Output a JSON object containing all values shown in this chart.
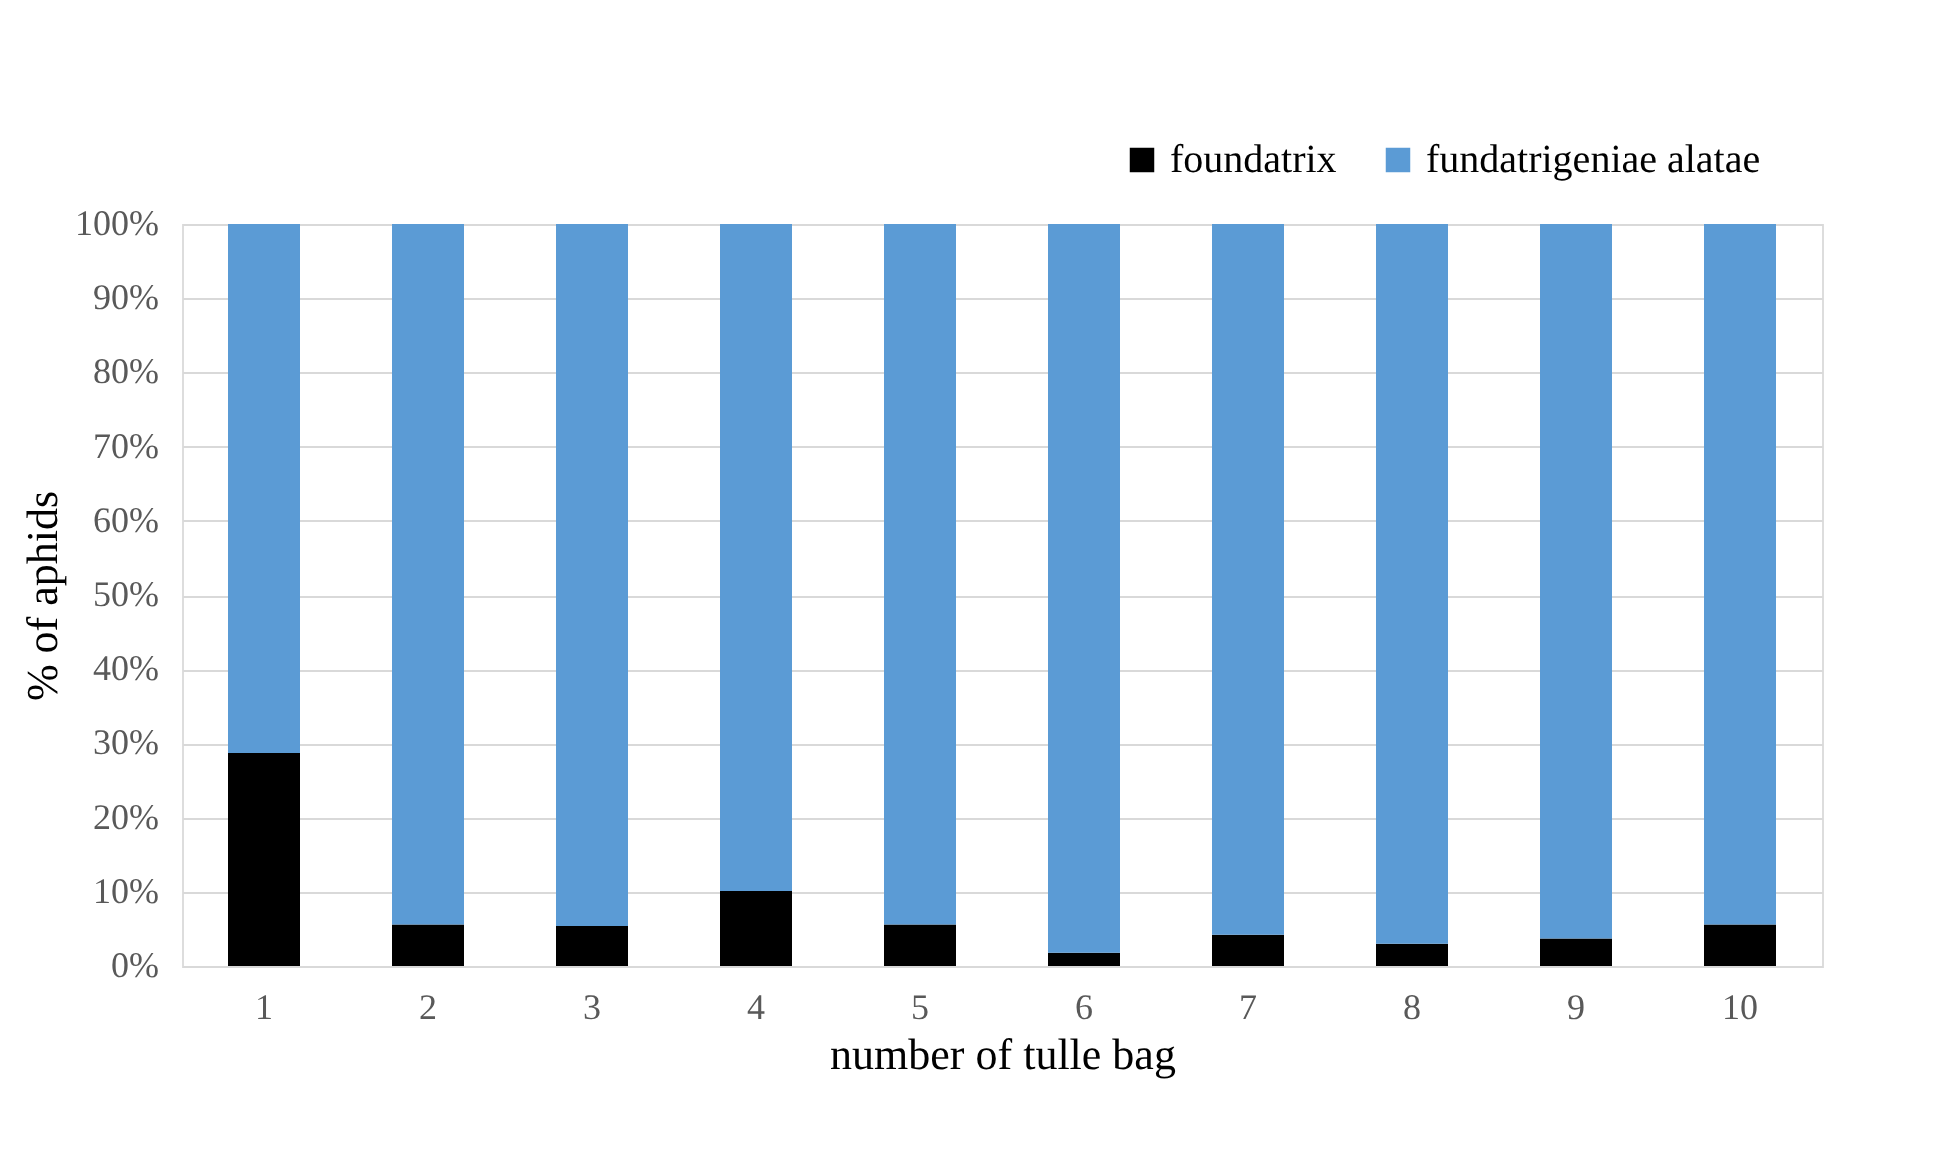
{
  "chart_data": {
    "type": "bar",
    "stacked": true,
    "xlabel": "number of tulle bag",
    "ylabel": "% of aphids",
    "categories": [
      "1",
      "2",
      "3",
      "4",
      "5",
      "6",
      "7",
      "8",
      "9",
      "10"
    ],
    "series": [
      {
        "name": "foundatrix",
        "color": "#000000",
        "values": [
          28.7,
          5.6,
          5.4,
          10.1,
          5.6,
          1.8,
          4.2,
          3.0,
          3.7,
          5.6
        ]
      },
      {
        "name": "fundatrigeniae alatae",
        "color": "#5b9bd5",
        "values": [
          71.3,
          94.4,
          94.6,
          89.9,
          94.4,
          98.2,
          95.8,
          97.0,
          96.3,
          94.4
        ]
      }
    ],
    "ylim": [
      0,
      100
    ],
    "yticks": [
      {
        "value": 0,
        "label": "0%"
      },
      {
        "value": 10,
        "label": "10%"
      },
      {
        "value": 20,
        "label": "20%"
      },
      {
        "value": 30,
        "label": "30%"
      },
      {
        "value": 40,
        "label": "40%"
      },
      {
        "value": 50,
        "label": "50%"
      },
      {
        "value": 60,
        "label": "60%"
      },
      {
        "value": 70,
        "label": "70%"
      },
      {
        "value": 80,
        "label": "80%"
      },
      {
        "value": 90,
        "label": "90%"
      },
      {
        "value": 100,
        "label": "100%"
      }
    ],
    "grid": "y",
    "legend": "top right"
  }
}
